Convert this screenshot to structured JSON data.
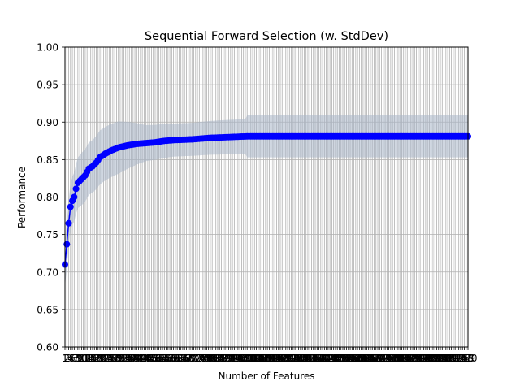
{
  "chart_data": {
    "type": "line",
    "title": "Sequential Forward Selection (w. StdDev)",
    "xlabel": "Number of Features",
    "ylabel": "Performance",
    "xlim": [
      1,
      220
    ],
    "ylim": [
      0.6,
      1.0
    ],
    "yticks": [
      "0.60",
      "0.65",
      "0.70",
      "0.75",
      "0.80",
      "0.85",
      "0.90",
      "0.95",
      "1.00"
    ],
    "xticks_start": 1,
    "xticks_end": 220,
    "grid": true,
    "series_color": "#0000ff",
    "band_color": "#a9b7c8",
    "keypoints": [
      [
        1,
        0.71
      ],
      [
        2,
        0.737
      ],
      [
        3,
        0.765
      ],
      [
        4,
        0.787
      ],
      [
        5,
        0.795
      ],
      [
        6,
        0.8
      ],
      [
        7,
        0.811
      ],
      [
        8,
        0.819
      ],
      [
        10,
        0.824
      ],
      [
        12,
        0.829
      ],
      [
        14,
        0.838
      ],
      [
        16,
        0.841
      ],
      [
        18,
        0.846
      ],
      [
        20,
        0.853
      ],
      [
        23,
        0.858
      ],
      [
        26,
        0.862
      ],
      [
        30,
        0.866
      ],
      [
        35,
        0.869
      ],
      [
        40,
        0.871
      ],
      [
        45,
        0.872
      ],
      [
        50,
        0.873
      ],
      [
        55,
        0.875
      ],
      [
        60,
        0.876
      ],
      [
        70,
        0.877
      ],
      [
        80,
        0.879
      ],
      [
        90,
        0.88
      ],
      [
        100,
        0.881
      ],
      [
        220,
        0.881
      ]
    ],
    "std_keypoints": [
      [
        1,
        0.03
      ],
      [
        5,
        0.032
      ],
      [
        10,
        0.035
      ],
      [
        15,
        0.035
      ],
      [
        20,
        0.036
      ],
      [
        30,
        0.035
      ],
      [
        45,
        0.024
      ],
      [
        60,
        0.022
      ],
      [
        70,
        0.022
      ],
      [
        90,
        0.023
      ],
      [
        99,
        0.023
      ],
      [
        100,
        0.028
      ],
      [
        220,
        0.028
      ]
    ]
  }
}
